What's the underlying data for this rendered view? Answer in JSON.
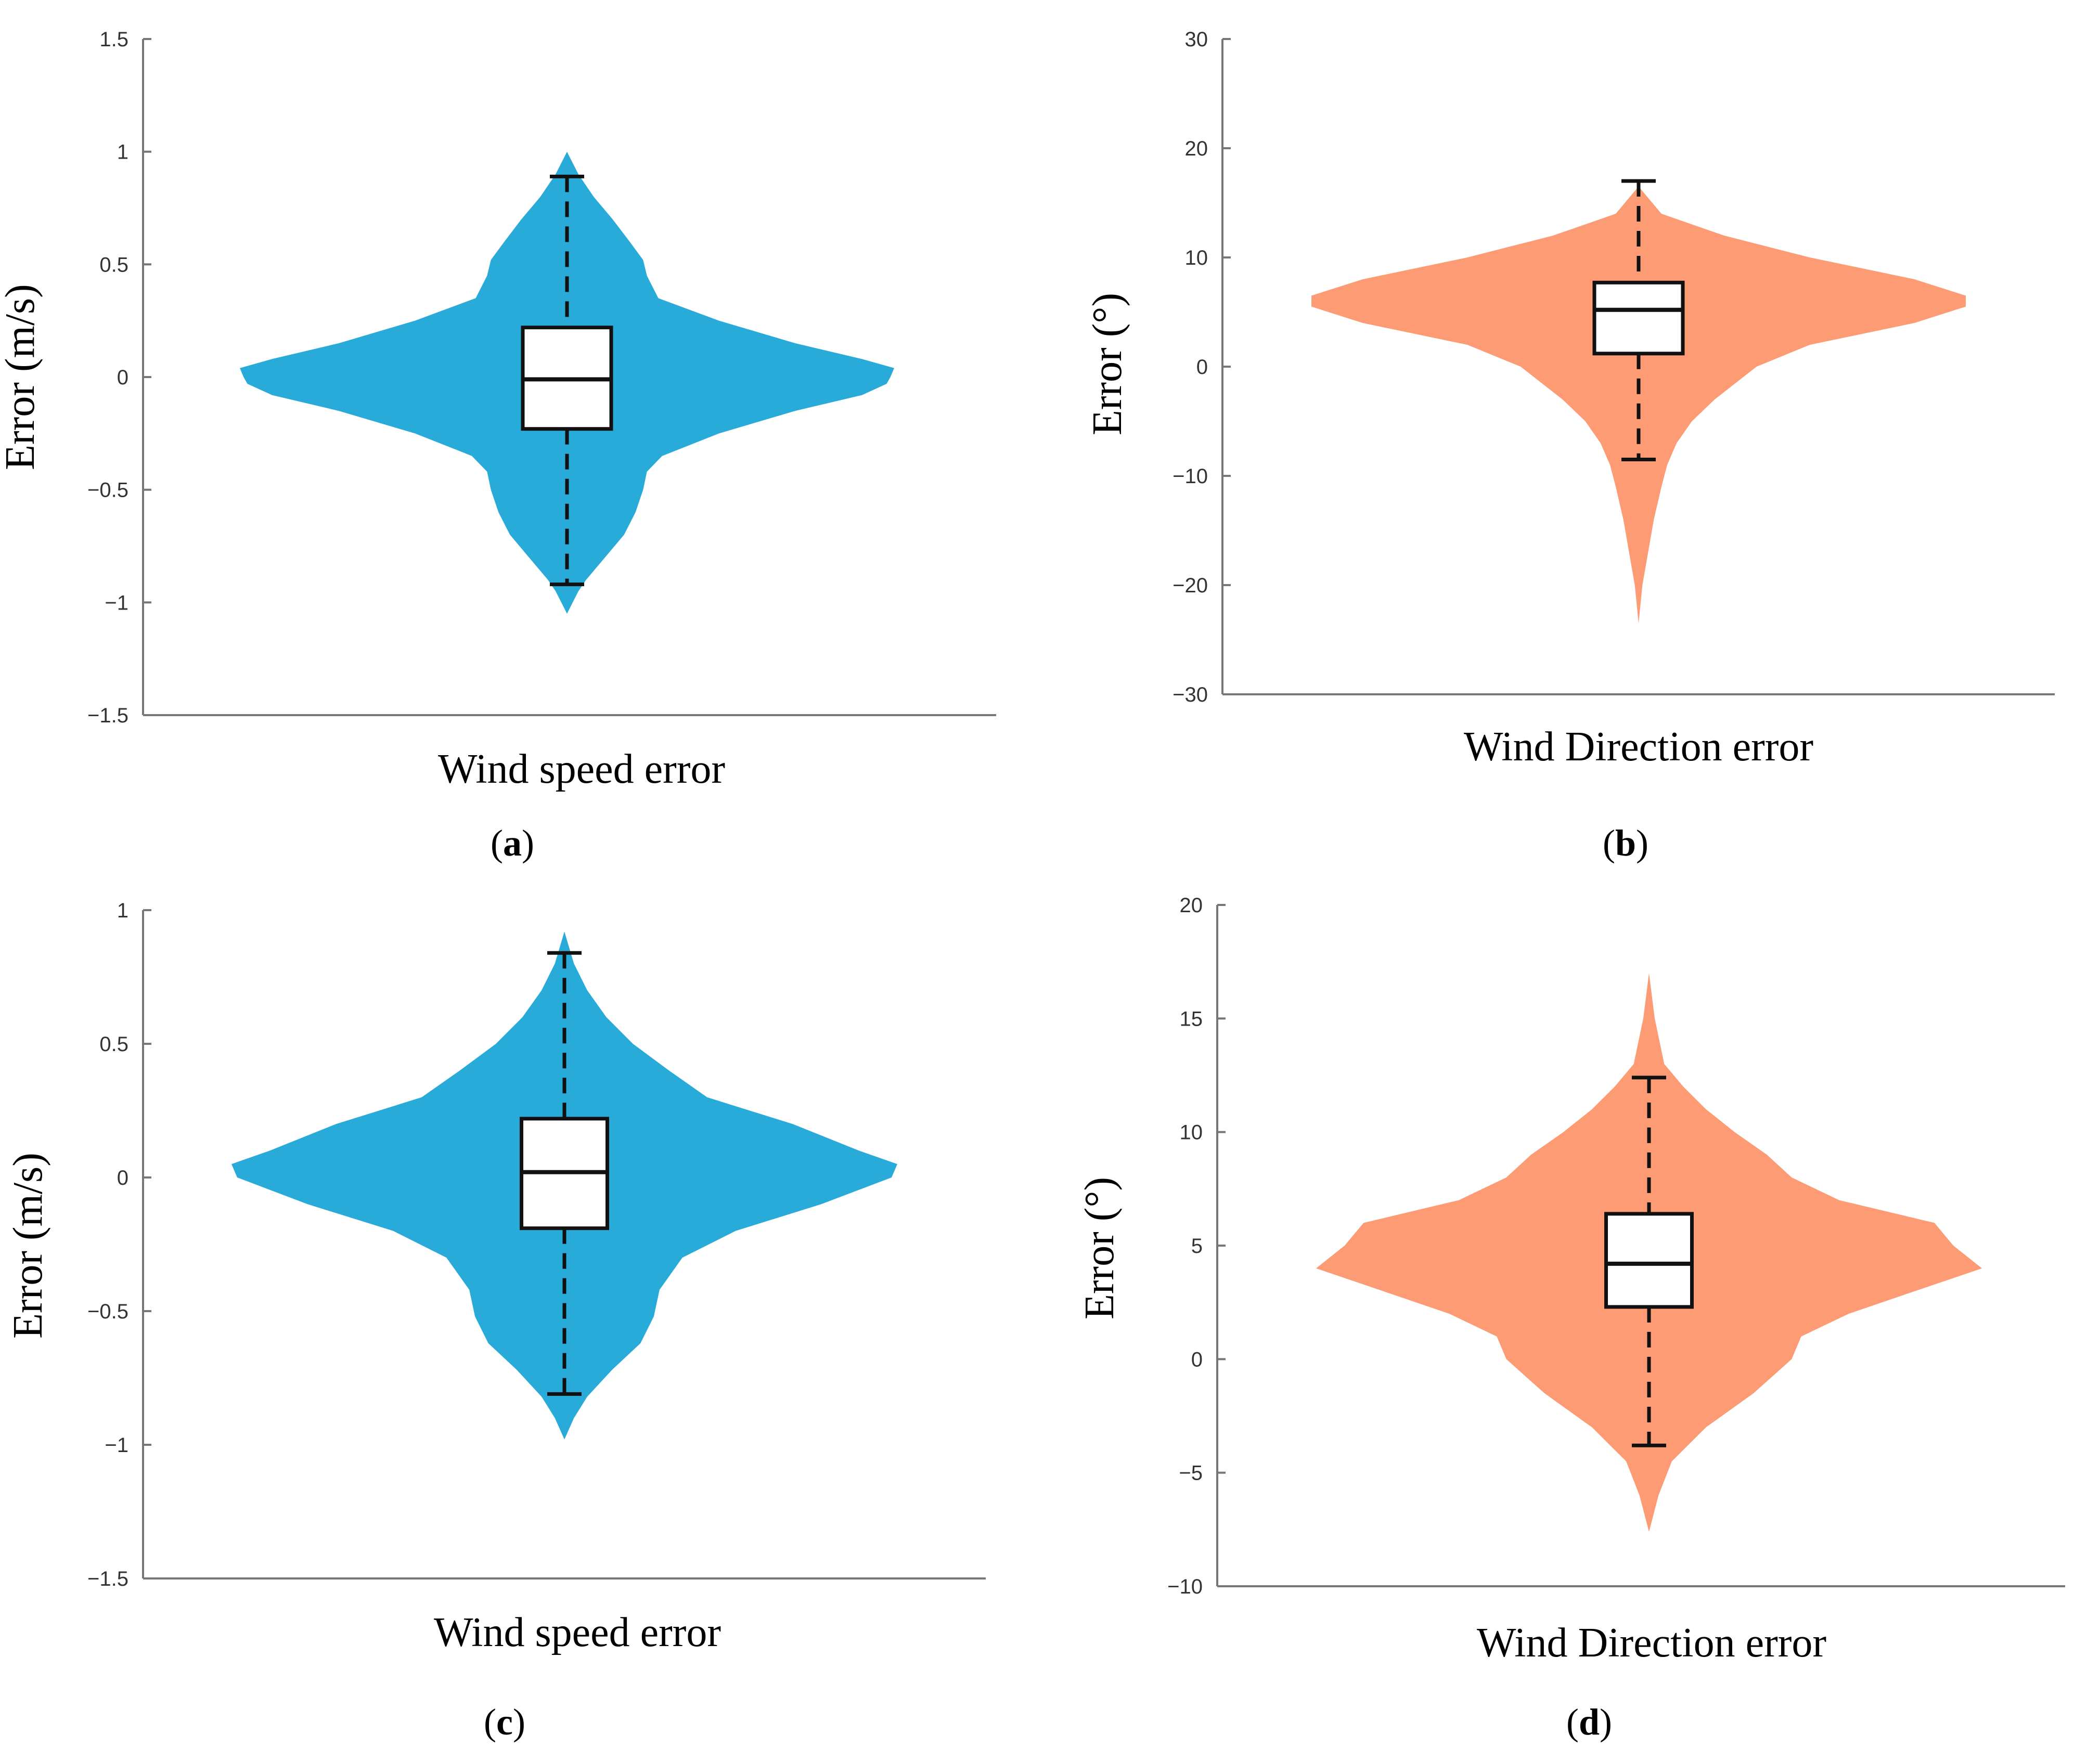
{
  "figure": {
    "description_labels": [
      "(a)",
      "(b)",
      "(c)",
      "(d)"
    ]
  },
  "chart_data": [
    {
      "type": "violin",
      "panel": "a",
      "panel_letter": "a",
      "title": "",
      "xlabel": "Wind speed error",
      "ylabel": "Error (m/s)",
      "ylim": [
        -1.5,
        1.5
      ],
      "yticks": [
        -1.5,
        -1,
        -0.5,
        0,
        0.5,
        1,
        1.5
      ],
      "ytick_labels": [
        "−1.5",
        "−1",
        "−0.5",
        "0",
        "0.5",
        "1",
        "1.5"
      ],
      "color": "#29abd9",
      "box": {
        "min": -0.92,
        "q1": -0.23,
        "median": -0.01,
        "q3": 0.22,
        "max": 0.89
      },
      "density": {
        "y": [
          -1.05,
          -1.0,
          -0.95,
          -0.9,
          -0.8,
          -0.7,
          -0.6,
          -0.5,
          -0.42,
          -0.35,
          -0.25,
          -0.15,
          -0.08,
          -0.03,
          0.0,
          0.04,
          0.08,
          0.15,
          0.25,
          0.35,
          0.45,
          0.52,
          0.6,
          0.7,
          0.8,
          0.9,
          1.0
        ],
        "width": [
          0.0,
          0.03,
          0.06,
          0.1,
          0.2,
          0.3,
          0.36,
          0.4,
          0.42,
          0.5,
          0.8,
          1.2,
          1.55,
          1.68,
          1.7,
          1.72,
          1.55,
          1.2,
          0.8,
          0.48,
          0.42,
          0.4,
          0.33,
          0.24,
          0.14,
          0.06,
          0.0
        ]
      }
    },
    {
      "type": "violin",
      "panel": "b",
      "panel_letter": "b",
      "title": "",
      "xlabel": "Wind Direction error",
      "ylabel": "Error (°)",
      "ylim": [
        -30,
        30
      ],
      "yticks": [
        -30,
        -20,
        -10,
        0,
        10,
        20,
        30
      ],
      "ytick_labels": [
        "−30",
        "−20",
        "−10",
        "0",
        "10",
        "20",
        "30"
      ],
      "color": "#fc9b74",
      "box": {
        "min": -8.5,
        "q1": 1.2,
        "median": 5.2,
        "q3": 7.7,
        "max": 17.0
      },
      "density": {
        "y": [
          -23.5,
          -20,
          -17,
          -14,
          -11,
          -9,
          -7,
          -5,
          -3,
          0,
          2,
          4,
          5.5,
          6.5,
          8,
          10,
          12,
          14,
          16.5
        ],
        "width": [
          0.0,
          0.02,
          0.05,
          0.08,
          0.12,
          0.15,
          0.2,
          0.28,
          0.4,
          0.62,
          0.9,
          1.45,
          1.72,
          1.72,
          1.45,
          0.9,
          0.45,
          0.12,
          0.0
        ]
      }
    },
    {
      "type": "violin",
      "panel": "c",
      "panel_letter": "c",
      "title": "",
      "xlabel": "Wind speed error",
      "ylabel": "Error (m/s)",
      "ylim": [
        -1.5,
        1
      ],
      "yticks": [
        -1.5,
        -1,
        -0.5,
        0,
        0.5,
        1
      ],
      "ytick_labels": [
        "−1.5",
        "−1",
        "−0.5",
        "0",
        "0.5",
        "1"
      ],
      "color": "#29abd9",
      "box": {
        "min": -0.81,
        "q1": -0.19,
        "median": 0.02,
        "q3": 0.22,
        "max": 0.84
      },
      "density": {
        "y": [
          -0.98,
          -0.9,
          -0.82,
          -0.72,
          -0.62,
          -0.52,
          -0.42,
          -0.3,
          -0.2,
          -0.1,
          0.0,
          0.05,
          0.1,
          0.2,
          0.3,
          0.4,
          0.5,
          0.6,
          0.7,
          0.8,
          0.92
        ],
        "width": [
          0.0,
          0.05,
          0.12,
          0.25,
          0.4,
          0.47,
          0.5,
          0.62,
          0.9,
          1.35,
          1.72,
          1.75,
          1.55,
          1.2,
          0.75,
          0.55,
          0.36,
          0.22,
          0.12,
          0.05,
          0.0
        ]
      }
    },
    {
      "type": "violin",
      "panel": "d",
      "panel_letter": "d",
      "title": "",
      "xlabel": "Wind Direction error",
      "ylabel": "Error (°)",
      "ylim": [
        -10,
        20
      ],
      "yticks": [
        -10,
        -5,
        0,
        5,
        10,
        15,
        20
      ],
      "ytick_labels": [
        "−10",
        "−5",
        "0",
        "5",
        "10",
        "15",
        "20"
      ],
      "color": "#fc9b74",
      "box": {
        "min": -3.8,
        "q1": 2.3,
        "median": 4.2,
        "q3": 6.4,
        "max": 12.4
      },
      "density": {
        "y": [
          -7.6,
          -6,
          -4.5,
          -3,
          -1.5,
          0,
          1,
          2,
          3,
          4,
          5,
          6,
          7,
          8,
          9,
          10,
          11,
          12,
          13,
          15,
          17
        ],
        "width": [
          0.0,
          0.05,
          0.12,
          0.3,
          0.55,
          0.75,
          0.8,
          1.05,
          1.4,
          1.75,
          1.6,
          1.5,
          1.0,
          0.75,
          0.62,
          0.45,
          0.3,
          0.18,
          0.08,
          0.03,
          0.0
        ]
      }
    }
  ]
}
